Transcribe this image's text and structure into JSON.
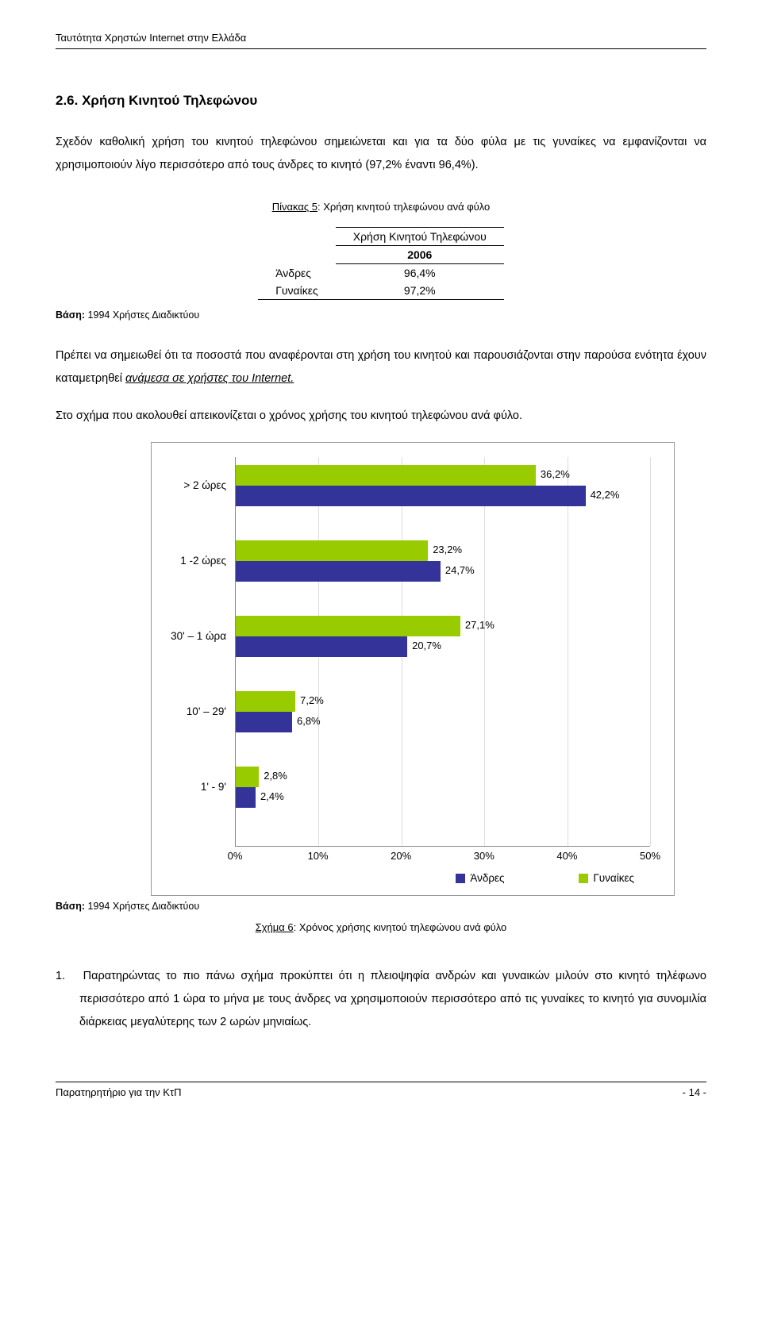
{
  "header": "Ταυτότητα Χρηστών Internet στην Ελλάδα",
  "section_number": "2.6.",
  "section_title": "Χρήση Κινητού Τηλεφώνου",
  "intro_para": "Σχεδόν καθολική χρήση του κινητού τηλεφώνου σημειώνεται και για τα δύο φύλα με τις γυναίκες να εμφανίζονται να χρησιμοποιούν λίγο περισσότερο από τους άνδρες το κινητό (97,2% έναντι 96,4%).",
  "table": {
    "caption_prefix": "Πίνακας 5",
    "caption_rest": ": Χρήση κινητού τηλεφώνου ανά φύλο",
    "header": "Χρήση Κινητού Τηλεφώνου",
    "year": "2006",
    "rows": [
      {
        "label": "Άνδρες",
        "value": "96,4%"
      },
      {
        "label": "Γυναίκες",
        "value": "97,2%"
      }
    ]
  },
  "base_label": "Βάση:",
  "base_text": "1994 Χρήστες Διαδικτύου",
  "mid_para": "Πρέπει να σημειωθεί ότι τα ποσοστά που αναφέρονται στη χρήση του κινητού και παρουσιάζονται στην παρούσα ενότητα έχουν καταμετρηθεί ",
  "mid_para_italic": "ανάμεσα σε χρήστες του Internet.",
  "pre_chart_para": "Στο σχήμα που ακολουθεί απεικονίζεται ο χρόνος χρήσης του κινητού τηλεφώνου ανά φύλο.",
  "chart": {
    "type": "horizontal_grouped_bar",
    "x_max_pct": 50,
    "x_ticks": [
      "0%",
      "10%",
      "20%",
      "30%",
      "40%",
      "50%"
    ],
    "colors": {
      "men": "#333399",
      "women": "#99cc00",
      "grid": "#dddddd",
      "axis": "#888888"
    },
    "categories": [
      {
        "label": "> 2 ώρες",
        "women": 36.2,
        "men": 42.2,
        "women_label": "36,2%",
        "men_label": "42,2%"
      },
      {
        "label": "1 -2 ώρες",
        "women": 23.2,
        "men": 24.7,
        "women_label": "23,2%",
        "men_label": "24,7%"
      },
      {
        "label": "30' – 1 ώρα",
        "women": 27.1,
        "men": 20.7,
        "women_label": "27,1%",
        "men_label": "20,7%"
      },
      {
        "label": "10' – 29'",
        "women": 7.2,
        "men": 6.8,
        "women_label": "7,2%",
        "men_label": "6,8%"
      },
      {
        "label": "1' - 9'",
        "women": 2.8,
        "men": 2.4,
        "women_label": "2,8%",
        "men_label": "2,4%"
      }
    ],
    "legend": {
      "men": "Άνδρες",
      "women": "Γυναίκες"
    },
    "caption_prefix": "Σχήμα 6",
    "caption_rest": ": Χρόνος χρήσης κινητού τηλεφώνου ανά φύλο"
  },
  "obs_number": "1.",
  "obs_para": "Παρατηρώντας το πιο πάνω σχήμα προκύπτει ότι η πλειοψηφία ανδρών και γυναικών μιλούν στο κινητό τηλέφωνο περισσότερο από 1 ώρα το μήνα με τους άνδρες να χρησιμοποιούν περισσότερο από τις γυναίκες το κινητό για συνομιλία διάρκειας μεγαλύτερης των 2 ωρών μηνιαίως.",
  "footer_left": "Παρατηρητήριο για την ΚτΠ",
  "footer_right": "- 14 -"
}
